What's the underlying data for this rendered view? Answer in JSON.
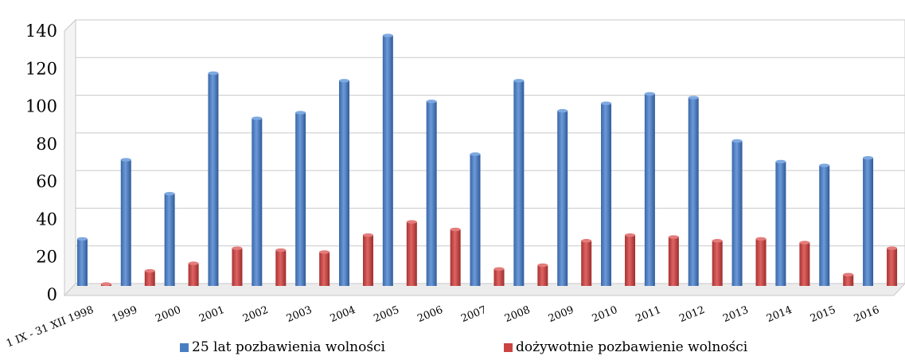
{
  "chart_data": {
    "type": "bar",
    "categories": [
      "1 IX - 31 XII 1998",
      "1999",
      "2000",
      "2001",
      "2002",
      "2003",
      "2004",
      "2005",
      "2006",
      "2007",
      "2008",
      "2009",
      "2010",
      "2011",
      "2012",
      "2013",
      "2014",
      "2015",
      "2016"
    ],
    "series": [
      {
        "name": "25 lat pozbawienia wolności",
        "color": "#4a7ec4",
        "values": [
          25,
          67,
          49,
          113,
          89,
          92,
          109,
          133,
          98,
          70,
          109,
          93,
          97,
          102,
          100,
          77,
          66,
          64,
          68
        ]
      },
      {
        "name": "dożywotnie pozbawienie wolności",
        "color": "#c94443",
        "values": [
          1,
          8,
          12,
          20,
          19,
          18,
          27,
          34,
          30,
          9,
          11,
          24,
          27,
          26,
          24,
          25,
          23,
          6,
          20
        ]
      }
    ],
    "ylim": [
      0,
      140
    ],
    "yticks": [
      0,
      20,
      40,
      60,
      80,
      100,
      120,
      140
    ],
    "grid": true,
    "legend_position": "bottom"
  }
}
